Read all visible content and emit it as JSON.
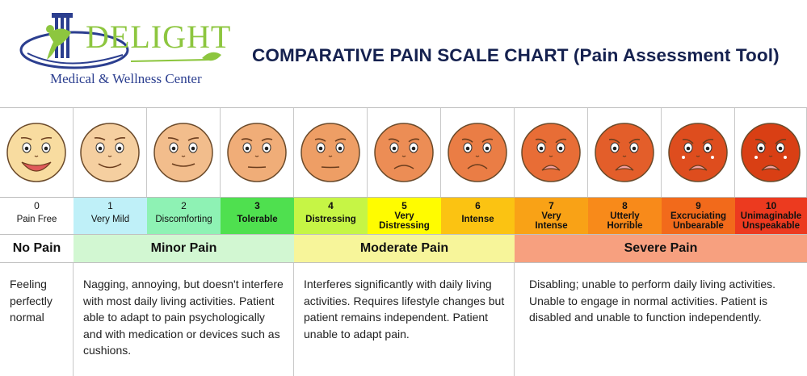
{
  "logo": {
    "word": "DELIGHT",
    "subtitle": "Medical & Wellness Center"
  },
  "title": "COMPARATIVE PAIN SCALE CHART (Pain Assessment Tool)",
  "levels": [
    {
      "number": "0",
      "label": "Pain Free",
      "color": "#ffffff"
    },
    {
      "number": "1",
      "label": "Very Mild",
      "color": "#bff0f8"
    },
    {
      "number": "2",
      "label": "Discomforting",
      "color": "#8ef2b4"
    },
    {
      "number": "3",
      "label": "Tolerable",
      "color": "#4fe04f"
    },
    {
      "number": "4",
      "label": "Distressing",
      "color": "#c6f545"
    },
    {
      "number": "5",
      "label": "Very\nDistressing",
      "color": "#fffc00"
    },
    {
      "number": "6",
      "label": "Intense",
      "color": "#fbc312"
    },
    {
      "number": "7",
      "label": "Very\nIntense",
      "color": "#f9a216"
    },
    {
      "number": "8",
      "label": "Utterly\nHorrible",
      "color": "#f88a1a"
    },
    {
      "number": "9",
      "label": "Excruciating\nUnbearable",
      "color": "#f26a1b"
    },
    {
      "number": "10",
      "label": "Unimaginable\nUnspeakable",
      "color": "#ec3a1f"
    }
  ],
  "groups": [
    {
      "label": "No Pain",
      "color": "#ffffff"
    },
    {
      "label": "Minor Pain",
      "color": "#d2f7d2"
    },
    {
      "label": "Moderate Pain",
      "color": "#f7f59a"
    },
    {
      "label": "Severe Pain",
      "color": "#f7a07f"
    }
  ],
  "descriptions": [
    "Feeling perfectly normal",
    "Nagging, annoying, but doesn't interfere with most daily living activities. Patient able to adapt to pain psychologically and  with medication or devices such as cushions.",
    "Interferes significantly with daily living activities. Requires lifestyle changes but patient remains independent. Patient unable to adapt pain.",
    "Disabling; unable to perform daily living activities. Unable to engage in normal activities. Patient is disabled and unable to function independently."
  ],
  "face_colors": [
    "#f8dca0",
    "#f5cfa0",
    "#f2bd8c",
    "#f0ad78",
    "#ee9e65",
    "#ec8d55",
    "#ea7d45",
    "#e86d36",
    "#e35e2a",
    "#de4d1e",
    "#d93f14"
  ]
}
